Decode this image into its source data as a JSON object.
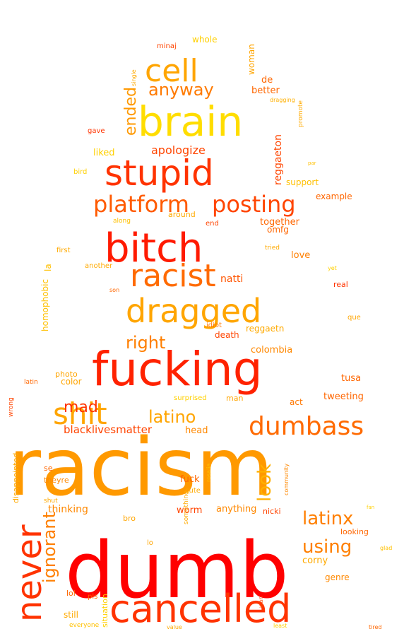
{
  "palette": {
    "red": "#ff0000",
    "red_orange": "#ff2a00",
    "orange_red": "#ff4500",
    "orange": "#ff6a00",
    "amber": "#ff8c00",
    "gold_orange": "#ffa500",
    "yellow": "#ffd700",
    "pale_yellow": "#ffe066"
  },
  "words": [
    {
      "text": "racism",
      "color": "#ff9900"
    },
    {
      "text": "dumb",
      "color": "#ff0000"
    },
    {
      "text": "fucking",
      "color": "#ff2200"
    },
    {
      "text": "brain",
      "color": "#ffdd00"
    },
    {
      "text": "bitch",
      "color": "#ff1a00"
    },
    {
      "text": "stupid",
      "color": "#ff3300"
    },
    {
      "text": "cancelled",
      "color": "#ff3300"
    },
    {
      "text": "dragged",
      "color": "#ffa500"
    },
    {
      "text": "racist",
      "color": "#ff6a00"
    },
    {
      "text": "shit",
      "color": "#ffa500"
    },
    {
      "text": "cell",
      "color": "#ffa500"
    },
    {
      "text": "dumbass",
      "color": "#ff6a00"
    },
    {
      "text": "posting",
      "color": "#ff4500"
    },
    {
      "text": "platform",
      "color": "#ff5a00"
    },
    {
      "text": "never",
      "color": "#ff3300"
    },
    {
      "text": "anyway",
      "color": "#ff7a00"
    },
    {
      "text": "latino",
      "color": "#ffa500"
    },
    {
      "text": "right",
      "color": "#ff7f00"
    },
    {
      "text": "using",
      "color": "#ff7f00"
    },
    {
      "text": "latinx",
      "color": "#ff7f00"
    },
    {
      "text": "mad",
      "color": "#ff3300"
    },
    {
      "text": "look",
      "color": "#ffb000"
    },
    {
      "text": "ignorant",
      "color": "#ff7f00"
    },
    {
      "text": "ended",
      "color": "#ff9900"
    },
    {
      "text": "apologize",
      "color": "#ff4500"
    },
    {
      "text": "liked",
      "color": "#ffd000"
    },
    {
      "text": "reggaeton",
      "color": "#ff4500"
    },
    {
      "text": "support",
      "color": "#ffc000"
    },
    {
      "text": "together",
      "color": "#ff6600"
    },
    {
      "text": "love",
      "color": "#ff7f00"
    },
    {
      "text": "omfg",
      "color": "#ff6600"
    },
    {
      "text": "natti",
      "color": "#ff5500"
    },
    {
      "text": "example",
      "color": "#ff6600"
    },
    {
      "text": "colombia",
      "color": "#ff8800"
    },
    {
      "text": "tusa",
      "color": "#ff6600"
    },
    {
      "text": "tweeting",
      "color": "#ff6600"
    },
    {
      "text": "blacklivesmatter",
      "color": "#ff4400"
    },
    {
      "text": "head",
      "color": "#ff8800"
    },
    {
      "text": "color",
      "color": "#ffa500"
    },
    {
      "text": "man",
      "color": "#ffa500"
    },
    {
      "text": "act",
      "color": "#ff7700"
    },
    {
      "text": "thinking",
      "color": "#ff8800"
    },
    {
      "text": "fuck",
      "color": "#ff6600"
    },
    {
      "text": "worm",
      "color": "#ff4400"
    },
    {
      "text": "anything",
      "color": "#ff8800"
    },
    {
      "text": "corny",
      "color": "#ffaa00"
    },
    {
      "text": "genre",
      "color": "#ff8800"
    },
    {
      "text": "still",
      "color": "#ffaa00"
    },
    {
      "text": "lol",
      "color": "#ff6600"
    },
    {
      "text": "de",
      "color": "#ff6600"
    },
    {
      "text": "better",
      "color": "#ff6600"
    },
    {
      "text": "woman",
      "color": "#ffa500"
    },
    {
      "text": "gave",
      "color": "#ff3300"
    },
    {
      "text": "minaj",
      "color": "#ff4400"
    },
    {
      "text": "whole",
      "color": "#ffd000"
    },
    {
      "text": "single",
      "color": "#ffaa00"
    },
    {
      "text": "promote",
      "color": "#ffaa00"
    },
    {
      "text": "dragging",
      "color": "#ffb000"
    },
    {
      "text": "bird",
      "color": "#ffd000"
    },
    {
      "text": "around",
      "color": "#ffaa00"
    },
    {
      "text": "along",
      "color": "#ffc000"
    },
    {
      "text": "end",
      "color": "#ff4400"
    },
    {
      "text": "tried",
      "color": "#ffaa00"
    },
    {
      "text": "first",
      "color": "#ffaa00"
    },
    {
      "text": "another",
      "color": "#ffaa00"
    },
    {
      "text": "la",
      "color": "#ffc000"
    },
    {
      "text": "son",
      "color": "#ff6600"
    },
    {
      "text": "homophobic",
      "color": "#ffc000"
    },
    {
      "text": "real",
      "color": "#ff3300"
    },
    {
      "text": "yet",
      "color": "#ffd000"
    },
    {
      "text": "que",
      "color": "#ffa500"
    },
    {
      "text": "reggaetn",
      "color": "#ffaa00"
    },
    {
      "text": "idiot",
      "color": "#ff7700"
    },
    {
      "text": "death",
      "color": "#ff4400"
    },
    {
      "text": "photo",
      "color": "#ffa500"
    },
    {
      "text": "latin",
      "color": "#ff6600"
    },
    {
      "text": "surprised",
      "color": "#ffd000"
    },
    {
      "text": "wrong",
      "color": "#ff4400"
    },
    {
      "text": "disappointed",
      "color": "#ffaa00"
    },
    {
      "text": "se",
      "color": "#ff6600"
    },
    {
      "text": "theyre",
      "color": "#ff8800"
    },
    {
      "text": "shut",
      "color": "#ffaa00"
    },
    {
      "text": "cute",
      "color": "#ffaa00"
    },
    {
      "text": "rosalia",
      "color": "#ffc000"
    },
    {
      "text": "community",
      "color": "#ff8800"
    },
    {
      "text": "something",
      "color": "#ffaa00"
    },
    {
      "text": "bro",
      "color": "#ffa500"
    },
    {
      "text": "nicki",
      "color": "#ff4400"
    },
    {
      "text": "looking",
      "color": "#ff6600"
    },
    {
      "text": "fan",
      "color": "#ffd000"
    },
    {
      "text": "lo",
      "color": "#ffa500"
    },
    {
      "text": "situation",
      "color": "#ffd000"
    },
    {
      "text": "pls",
      "color": "#ff6600"
    },
    {
      "text": "wan",
      "color": "#ff4400"
    },
    {
      "text": "glad",
      "color": "#ffc000"
    },
    {
      "text": "everyone",
      "color": "#ffc000"
    },
    {
      "text": "value",
      "color": "#ffaa00"
    },
    {
      "text": "least",
      "color": "#ffd000"
    },
    {
      "text": "tired",
      "color": "#ff6600"
    },
    {
      "text": "par",
      "color": "#ffc000"
    }
  ]
}
